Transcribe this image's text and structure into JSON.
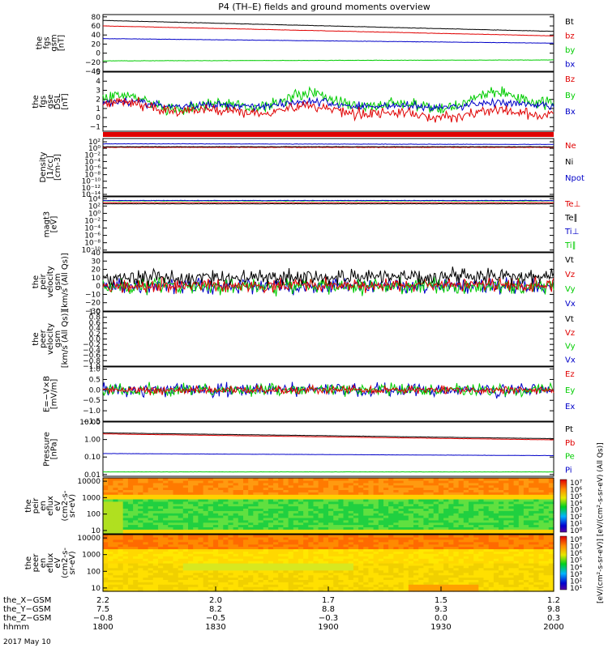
{
  "title": "P4 (TH–E) fields and ground moments overview",
  "date_label": "2017 May 10",
  "chart_data": {
    "type": "line",
    "colors": {
      "black": "#000000",
      "red": "#e00000",
      "green": "#00cc00",
      "blue": "#0000c8"
    },
    "panels": [
      {
        "id": "fgs",
        "ylabel": [
          "the",
          "fgs",
          "gsm",
          "[nT]"
        ],
        "ticks": [
          "80",
          "60",
          "40",
          "20",
          "0",
          "−20",
          "−40"
        ],
        "tickvals": [
          80,
          60,
          40,
          20,
          0,
          -20,
          -40
        ],
        "ylim": [
          -40,
          85
        ],
        "scale": "linear",
        "legend": [
          {
            "name": "Bt",
            "color": "black"
          },
          {
            "name": "bz",
            "color": "red"
          },
          {
            "name": "by",
            "color": "green"
          },
          {
            "name": "bx",
            "color": "blue"
          }
        ],
        "series": [
          {
            "name": "Bt",
            "color": "black",
            "start": 72,
            "end": 48,
            "noise": 0.3
          },
          {
            "name": "bz",
            "color": "red",
            "start": 60,
            "end": 38,
            "noise": 0.3
          },
          {
            "name": "bx",
            "color": "blue",
            "start": 32,
            "end": 22,
            "noise": 0.3
          },
          {
            "name": "by",
            "color": "green",
            "start": -17,
            "end": -15,
            "noise": 0.3
          }
        ]
      },
      {
        "id": "fgs2",
        "ylabel": [
          "the",
          "fgs",
          "gse",
          "DSL",
          "[nT]"
        ],
        "ticks": [
          "5",
          "4",
          "3",
          "2",
          "1",
          "0",
          "−1"
        ],
        "tickvals": [
          5,
          4,
          3,
          2,
          1,
          0,
          -1
        ],
        "ylim": [
          -1.5,
          5
        ],
        "scale": "linear",
        "legend": [
          {
            "name": "Bz",
            "color": "red"
          },
          {
            "name": "By",
            "color": "green"
          },
          {
            "name": "Bx",
            "color": "blue"
          }
        ],
        "series": [
          {
            "name": "By",
            "color": "green",
            "start": 1.5,
            "end": 1.8,
            "noise": 0.5,
            "wave": 1.2
          },
          {
            "name": "Bx",
            "color": "blue",
            "start": 1.5,
            "end": 1.3,
            "noise": 0.35,
            "wave": 0.4
          },
          {
            "name": "Bz",
            "color": "red",
            "start": 1.2,
            "end": 0.2,
            "noise": 0.45,
            "wave": 0.6
          }
        ]
      },
      {
        "id": "density",
        "ylabel": [
          "Density",
          "[1/cc]",
          "[cm-3]"
        ],
        "ticks": [
          "10²",
          "10⁰",
          "10⁻²",
          "10⁻⁴",
          "10⁻⁶",
          "10⁻⁸",
          "10⁻¹⁰",
          "10⁻¹²",
          "10⁻¹⁴"
        ],
        "tickvals": [
          2,
          0,
          -2,
          -4,
          -6,
          -8,
          -10,
          -12,
          -14
        ],
        "ylim": [
          -14.5,
          3
        ],
        "scale": "log",
        "legend": [
          {
            "name": "Ne",
            "color": "red"
          },
          {
            "name": "Ni",
            "color": "black"
          },
          {
            "name": "Npot",
            "color": "blue"
          }
        ],
        "series": [
          {
            "name": "Ne",
            "color": "red",
            "start": 0.3,
            "end": 0.3,
            "noise": 0.05
          },
          {
            "name": "Ni",
            "color": "black",
            "start": 0.5,
            "end": 0.5,
            "noise": 0.05
          },
          {
            "name": "Npot",
            "color": "blue",
            "start": 1.4,
            "end": 1.2,
            "noise": 0.05
          }
        ]
      },
      {
        "id": "temp",
        "ylabel": [
          "magt3",
          "[eV]"
        ],
        "ticks": [
          "10⁴",
          "10²",
          "10⁰",
          "10⁻²",
          "10⁻⁴",
          "10⁻⁶",
          "10⁻⁸",
          "10⁻¹⁰"
        ],
        "tickvals": [
          4,
          2,
          0,
          -2,
          -4,
          -6,
          -8,
          -10
        ],
        "ylim": [
          -10.5,
          4.5
        ],
        "scale": "log",
        "legend": [
          {
            "name": "Te⊥",
            "color": "red"
          },
          {
            "name": "Te∥",
            "color": "black"
          },
          {
            "name": "Ti⊥",
            "color": "blue"
          },
          {
            "name": "Ti∥",
            "color": "green"
          }
        ],
        "series": [
          {
            "name": "Ti∥",
            "color": "green",
            "start": 3.4,
            "end": 3.4,
            "noise": 0.04
          },
          {
            "name": "Ti⊥",
            "color": "blue",
            "start": 3.5,
            "end": 3.5,
            "noise": 0.04
          },
          {
            "name": "Te⊥",
            "color": "red",
            "start": 2.9,
            "end": 2.9,
            "noise": 0.04
          },
          {
            "name": "Te∥",
            "color": "black",
            "start": 2.6,
            "end": 2.6,
            "noise": 0.04
          }
        ]
      },
      {
        "id": "peir_vel",
        "ylabel": [
          "the",
          "peir",
          "velocity",
          "gsm",
          "[km/s (All Qs)]"
        ],
        "ticks": [
          "40",
          "30",
          "20",
          "10",
          "0",
          "−10",
          "−20",
          "−30"
        ],
        "tickvals": [
          40,
          30,
          20,
          10,
          0,
          -10,
          -20,
          -30
        ],
        "ylim": [
          -30,
          40
        ],
        "scale": "linear",
        "legend": [
          {
            "name": "Vt",
            "color": "black"
          },
          {
            "name": "Vz",
            "color": "red"
          },
          {
            "name": "Vy",
            "color": "green"
          },
          {
            "name": "Vx",
            "color": "blue"
          }
        ],
        "series": [
          {
            "name": "Vx",
            "color": "blue",
            "start": 0,
            "end": 0,
            "noise": 7
          },
          {
            "name": "Vy",
            "color": "green",
            "start": 0,
            "end": 0,
            "noise": 7
          },
          {
            "name": "Vz",
            "color": "red",
            "start": 1,
            "end": 1,
            "noise": 6
          },
          {
            "name": "Vt",
            "color": "black",
            "start": 10,
            "end": 12,
            "noise": 7
          }
        ]
      },
      {
        "id": "peer_vel",
        "ylabel": [
          "the",
          "peer",
          "velocity",
          "gsm",
          "[km/s (All Qs)]"
        ],
        "ticks": [
          "1.0",
          "0.8",
          "0.6",
          "0.4",
          "0.2",
          "0.0",
          "−0.2",
          "−0.4",
          "−0.6",
          "−0.8",
          "−1.0"
        ],
        "tickvals": [
          1,
          0.8,
          0.6,
          0.4,
          0.2,
          0,
          -0.2,
          -0.4,
          -0.6,
          -0.8,
          -1
        ],
        "ylim": [
          -1,
          1
        ],
        "scale": "linear",
        "legend": [
          {
            "name": "Vt",
            "color": "black"
          },
          {
            "name": "Vz",
            "color": "red"
          },
          {
            "name": "Vy",
            "color": "green"
          },
          {
            "name": "Vx",
            "color": "blue"
          }
        ],
        "series": []
      },
      {
        "id": "efield",
        "ylabel": [
          "E=−V×B",
          "[mV/m]"
        ],
        "ticks": [
          "1.0",
          "0.5",
          "0.0",
          "−0.5",
          "−1.0",
          "−1.5"
        ],
        "tickvals": [
          1,
          0.5,
          0,
          -0.5,
          -1,
          -1.5
        ],
        "ylim": [
          -1.5,
          1.1
        ],
        "scale": "linear",
        "legend": [
          {
            "name": "Ez",
            "color": "red"
          },
          {
            "name": "Ey",
            "color": "green"
          },
          {
            "name": "Ex",
            "color": "blue"
          }
        ],
        "series": [
          {
            "name": "Ex",
            "color": "blue",
            "start": 0,
            "end": 0,
            "noise": 0.25
          },
          {
            "name": "Ey",
            "color": "green",
            "start": 0,
            "end": 0,
            "noise": 0.22
          },
          {
            "name": "Ez",
            "color": "red",
            "start": 0,
            "end": 0,
            "noise": 0.14
          }
        ]
      },
      {
        "id": "pressure",
        "ylabel": [
          "Pressure",
          "[nPa]"
        ],
        "ticks": [
          "10.00",
          "1.00",
          "0.10",
          "0.01"
        ],
        "tickvals": [
          1,
          0,
          -1,
          -2
        ],
        "ylim": [
          -2.1,
          1
        ],
        "scale": "log",
        "legend": [
          {
            "name": "Pt",
            "color": "black"
          },
          {
            "name": "Pb",
            "color": "red"
          },
          {
            "name": "Pe",
            "color": "green"
          },
          {
            "name": "Pi",
            "color": "blue"
          }
        ],
        "series": [
          {
            "name": "Pt",
            "color": "black",
            "start": 0.38,
            "end": 0.05,
            "noise": 0.005
          },
          {
            "name": "Pb",
            "color": "red",
            "start": 0.32,
            "end": -0.02,
            "noise": 0.005
          },
          {
            "name": "Pi",
            "color": "blue",
            "start": -0.8,
            "end": -0.92,
            "noise": 0.005
          },
          {
            "name": "Pe",
            "color": "green",
            "start": -1.85,
            "end": -1.85,
            "noise": 0.005
          }
        ]
      }
    ],
    "spectrograms": [
      {
        "id": "peir_eflux",
        "ylabel": [
          "the",
          "peir",
          "en",
          "eflux",
          "eV",
          "(cm2-s-",
          "sr-eV)"
        ],
        "ticks": [
          "10000",
          "1000",
          "100",
          "10"
        ],
        "tickvals": [
          4,
          3,
          2,
          1
        ],
        "ylim": [
          0.8,
          4.2
        ],
        "scheme": "peir"
      },
      {
        "id": "peer_eflux",
        "ylabel": [
          "the",
          "peer",
          "en",
          "eflux",
          "eV",
          "(cm2-s-",
          "sr-eV)"
        ],
        "ticks": [
          "10000",
          "1000",
          "100",
          "10"
        ],
        "tickvals": [
          4,
          3,
          2,
          1
        ],
        "ylim": [
          0.8,
          4.2
        ],
        "scheme": "peer"
      }
    ],
    "colorbars": [
      {
        "ticks": [
          "10⁷",
          "10⁶",
          "10⁵",
          "10⁴",
          "10³",
          "10²",
          "10¹",
          "10⁰"
        ]
      },
      {
        "ticks": [
          "10⁸",
          "10⁷",
          "10⁶",
          "10⁵",
          "10⁴",
          "10³",
          "10²",
          "10¹"
        ]
      }
    ],
    "colorbar_label": "[eV/(cm²-s-sr-eV)] [eV/(cm²-s-sr-eV) (All Qs)]",
    "x_rows": [
      {
        "label": "the_X−GSM",
        "values": [
          "2.2",
          "2.0",
          "1.7",
          "1.5",
          "1.2"
        ]
      },
      {
        "label": "the_Y−GSM",
        "values": [
          "7.5",
          "8.2",
          "8.8",
          "9.3",
          "9.8"
        ]
      },
      {
        "label": "the_Z−GSM",
        "values": [
          "−0.8",
          "−0.5",
          "−0.3",
          "0.0",
          "0.3"
        ]
      },
      {
        "label": "hhmm",
        "values": [
          "1800",
          "1830",
          "1900",
          "1930",
          "2000"
        ]
      }
    ]
  }
}
